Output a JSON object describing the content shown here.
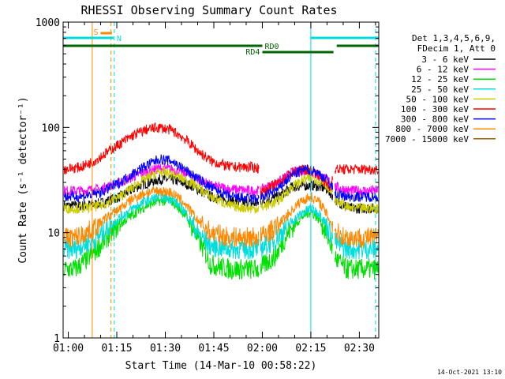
{
  "chart_data": {
    "type": "line",
    "title": "RHESSI Observing Summary Count Rates",
    "xlabel": "Start Time (14-Mar-10 00:58:22)",
    "ylabel": "Count Rate (s⁻¹ detector⁻¹)",
    "y_scale": "log",
    "ylim": [
      1,
      1000
    ],
    "xlim_minutes": [
      58.4,
      156.0
    ],
    "x_ticks": [
      {
        "label": "01:00",
        "value": 60
      },
      {
        "label": "01:15",
        "value": 75
      },
      {
        "label": "01:30",
        "value": 90
      },
      {
        "label": "01:45",
        "value": 105
      },
      {
        "label": "02:00",
        "value": 120
      },
      {
        "label": "02:15",
        "value": 135
      },
      {
        "label": "02:30",
        "value": 150
      }
    ],
    "y_ticks": [
      {
        "label": "1",
        "value": 1
      },
      {
        "label": "10",
        "value": 10
      },
      {
        "label": "100",
        "value": 100
      },
      {
        "label": "1000",
        "value": 1000
      }
    ],
    "legend_header": [
      "Det 1,3,4,5,6,9,",
      "FDecim 1, Att 0"
    ],
    "series": [
      {
        "name": "3 - 6 keV",
        "color": "#000000",
        "x": [
          59,
          64,
          70,
          76,
          82,
          88,
          92,
          98,
          104,
          110,
          116,
          119,
          125,
          129,
          133,
          136,
          140,
          143,
          147,
          150,
          155
        ],
        "y": [
          18,
          18,
          19,
          22,
          28,
          32,
          32,
          28,
          22,
          20,
          19,
          19,
          22,
          27,
          28,
          28,
          26,
          20,
          17,
          17,
          17
        ]
      },
      {
        "name": "6 - 12 keV",
        "color": "#ff00ff",
        "x": [
          59,
          64,
          70,
          76,
          82,
          88,
          92,
          98,
          104,
          110,
          116,
          119,
          125,
          129,
          133,
          136,
          140,
          143,
          147,
          150,
          155
        ],
        "y": [
          25,
          25,
          26,
          30,
          36,
          41,
          40,
          35,
          28,
          26,
          25,
          25,
          30,
          37,
          39,
          37,
          32,
          27,
          25,
          25,
          25
        ]
      },
      {
        "name": "12 - 25 keV",
        "color": "#00e000",
        "x": [
          59,
          62,
          64,
          68,
          72,
          76,
          80,
          84,
          88,
          92,
          96,
          100,
          104,
          110,
          116,
          119,
          124,
          128,
          132,
          135,
          138,
          141,
          143,
          146,
          150,
          155
        ],
        "y": [
          4.5,
          4.5,
          5,
          6.5,
          9,
          12,
          15,
          18,
          20,
          20,
          15,
          9,
          5,
          4.5,
          4.5,
          4.5,
          6,
          10,
          14,
          16,
          13,
          8,
          5.5,
          4.5,
          4.5,
          4.5
        ]
      },
      {
        "name": "25 - 50 keV",
        "color": "#00dddd",
        "x": [
          59,
          62,
          64,
          68,
          72,
          76,
          80,
          84,
          88,
          92,
          96,
          100,
          104,
          110,
          116,
          119,
          124,
          128,
          132,
          135,
          138,
          141,
          143,
          146,
          150,
          155
        ],
        "y": [
          7,
          7,
          7.5,
          8.5,
          11,
          14,
          17,
          20,
          22,
          21,
          16,
          10,
          7.5,
          7,
          7,
          7,
          8.5,
          12,
          15,
          17,
          15,
          10,
          8,
          7,
          7,
          7
        ]
      },
      {
        "name": "50 - 100 keV",
        "color": "#cccc00",
        "x": [
          59,
          64,
          70,
          76,
          82,
          88,
          92,
          98,
          104,
          110,
          116,
          119,
          125,
          129,
          133,
          136,
          140,
          143,
          147,
          150,
          155
        ],
        "y": [
          17,
          17,
          18,
          22,
          30,
          38,
          36,
          30,
          22,
          18,
          17,
          17,
          20,
          27,
          32,
          33,
          28,
          20,
          17,
          17,
          17
        ]
      },
      {
        "name": "100 - 300 keV",
        "color": "#ff0000",
        "x": [
          59,
          64,
          68,
          72,
          76,
          80,
          84,
          88,
          92,
          96,
          100,
          104,
          110,
          116,
          119,
          119.5,
          125,
          129,
          133,
          136,
          138,
          141,
          142,
          150,
          155
        ],
        "y": [
          40,
          42,
          48,
          58,
          70,
          84,
          95,
          100,
          94,
          78,
          60,
          48,
          42,
          42,
          41,
          24,
          30,
          37,
          40,
          38,
          34,
          26,
          40,
          40,
          40
        ]
      },
      {
        "name": "300 - 800 keV",
        "color": "#0000ff",
        "x": [
          59,
          64,
          70,
          76,
          82,
          88,
          92,
          98,
          104,
          110,
          116,
          119,
          125,
          129,
          133,
          136,
          140,
          143,
          147,
          150,
          155
        ],
        "y": [
          22,
          22,
          24,
          30,
          40,
          50,
          48,
          36,
          27,
          22,
          21,
          21,
          26,
          35,
          40,
          39,
          32,
          23,
          22,
          22,
          22
        ]
      },
      {
        "name": "800 - 7000 keV",
        "color": "#ff8800",
        "x": [
          59,
          62,
          64,
          68,
          72,
          76,
          80,
          84,
          88,
          92,
          96,
          100,
          104,
          110,
          116,
          119,
          124,
          128,
          132,
          135,
          138,
          141,
          143,
          146,
          150,
          155
        ],
        "y": [
          9,
          9,
          9.5,
          11,
          14,
          17,
          21,
          24,
          25,
          24,
          19,
          13,
          10,
          9,
          9,
          9,
          11,
          15,
          20,
          22,
          19,
          13,
          10,
          9,
          9,
          9
        ]
      },
      {
        "name": "7000 - 15000 keV",
        "color": "#a05a00",
        "x": [],
        "y": []
      }
    ],
    "annotations": {
      "attenuator": [
        {
          "label": "S",
          "color": "#ff8800",
          "start": 70.0,
          "end": 73.5
        },
        {
          "label": "N",
          "color": "#00dddd",
          "start": 58.4,
          "end": 74.0
        },
        {
          "label": "",
          "color": "#00dddd",
          "start": 135.0,
          "end": 156.0
        }
      ],
      "decimation": [
        {
          "label": "RD0",
          "color": "#006600",
          "start": 58.4,
          "end": 120.0
        },
        {
          "label": "RD4",
          "color": "#006600",
          "start": 120.0,
          "end": 142.0
        },
        {
          "label": "",
          "color": "#006600",
          "start": 143.0,
          "end": 156.0
        }
      ],
      "vertical_lines": [
        {
          "x": 67.4,
          "color": "#ff8800",
          "style": "solid"
        },
        {
          "x": 73.2,
          "color": "#ff8800",
          "style": "dashed"
        },
        {
          "x": 74.2,
          "color": "#00dddd",
          "style": "dashed"
        },
        {
          "x": 135.0,
          "color": "#00dddd",
          "style": "solid"
        },
        {
          "x": 155.0,
          "color": "#00dddd",
          "style": "dashed"
        }
      ]
    },
    "footer_date": "14-Oct-2021 13:10"
  }
}
